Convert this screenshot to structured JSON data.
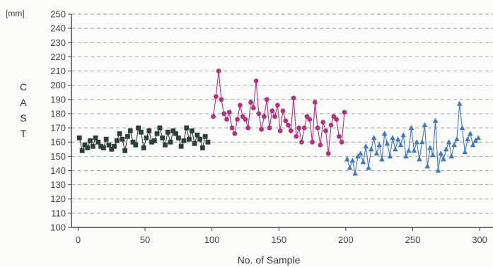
{
  "chart_data": {
    "type": "scatter",
    "title": "",
    "xlabel": "No. of Sample",
    "ylabel": "CAST",
    "yunit": "[mm]",
    "xlim": [
      -5,
      310
    ],
    "ylim": [
      100,
      250
    ],
    "xticks": [
      0,
      50,
      100,
      150,
      200,
      250,
      300
    ],
    "yticks": [
      100,
      110,
      120,
      130,
      140,
      150,
      160,
      170,
      180,
      190,
      200,
      210,
      220,
      230,
      240,
      250
    ],
    "grid": "horizontal dashed",
    "legend": "none",
    "series": [
      {
        "color": "#2e3e38",
        "marker": "square",
        "x": [
          1,
          3,
          5,
          7,
          9,
          11,
          13,
          15,
          17,
          19,
          21,
          23,
          25,
          27,
          29,
          31,
          33,
          35,
          37,
          39,
          41,
          43,
          45,
          47,
          49,
          51,
          53,
          55,
          57,
          59,
          61,
          63,
          65,
          67,
          69,
          71,
          73,
          75,
          77,
          79,
          81,
          83,
          85,
          87,
          89,
          91,
          93,
          95,
          97
        ],
        "y": [
          163,
          154,
          158,
          156,
          161,
          157,
          163,
          160,
          157,
          156,
          162,
          158,
          155,
          157,
          161,
          166,
          162,
          154,
          164,
          168,
          160,
          158,
          170,
          167,
          156,
          163,
          168,
          160,
          161,
          166,
          170,
          163,
          158,
          167,
          160,
          168,
          166,
          163,
          157,
          161,
          170,
          162,
          168,
          159,
          165,
          162,
          156,
          164,
          160
        ]
      },
      {
        "color": "#b0337e",
        "marker": "circle",
        "x": [
          101,
          103,
          105,
          107,
          109,
          111,
          113,
          115,
          117,
          119,
          121,
          123,
          125,
          127,
          129,
          131,
          133,
          135,
          137,
          139,
          141,
          143,
          145,
          147,
          149,
          151,
          153,
          155,
          157,
          159,
          161,
          163,
          165,
          167,
          169,
          171,
          173,
          175,
          177,
          179,
          181,
          183,
          185,
          187,
          189,
          191,
          193,
          195,
          197,
          199
        ],
        "y": [
          178,
          192,
          210,
          190,
          180,
          176,
          181,
          170,
          166,
          176,
          186,
          178,
          176,
          170,
          188,
          184,
          203,
          180,
          169,
          178,
          190,
          170,
          182,
          178,
          186,
          168,
          182,
          175,
          172,
          168,
          191,
          164,
          170,
          160,
          170,
          178,
          176,
          160,
          188,
          170,
          158,
          174,
          168,
          152,
          172,
          178,
          176,
          164,
          160,
          181
        ]
      },
      {
        "color": "#3f7ac0",
        "marker": "triangle",
        "x": [
          201,
          203,
          205,
          207,
          209,
          211,
          213,
          215,
          217,
          219,
          221,
          223,
          225,
          227,
          229,
          231,
          233,
          235,
          237,
          239,
          241,
          243,
          245,
          247,
          249,
          251,
          253,
          255,
          257,
          259,
          261,
          263,
          265,
          267,
          269,
          271,
          273,
          275,
          277,
          279,
          281,
          283,
          285,
          287,
          289,
          291,
          293,
          295,
          297,
          299
        ],
        "y": [
          148,
          142,
          147,
          138,
          150,
          152,
          146,
          157,
          142,
          155,
          163,
          152,
          158,
          148,
          166,
          159,
          150,
          163,
          155,
          162,
          158,
          165,
          150,
          154,
          170,
          154,
          160,
          148,
          160,
          172,
          143,
          156,
          151,
          175,
          140,
          152,
          148,
          155,
          160,
          150,
          158,
          162,
          187,
          170,
          153,
          162,
          166,
          158,
          161,
          163
        ]
      }
    ]
  }
}
